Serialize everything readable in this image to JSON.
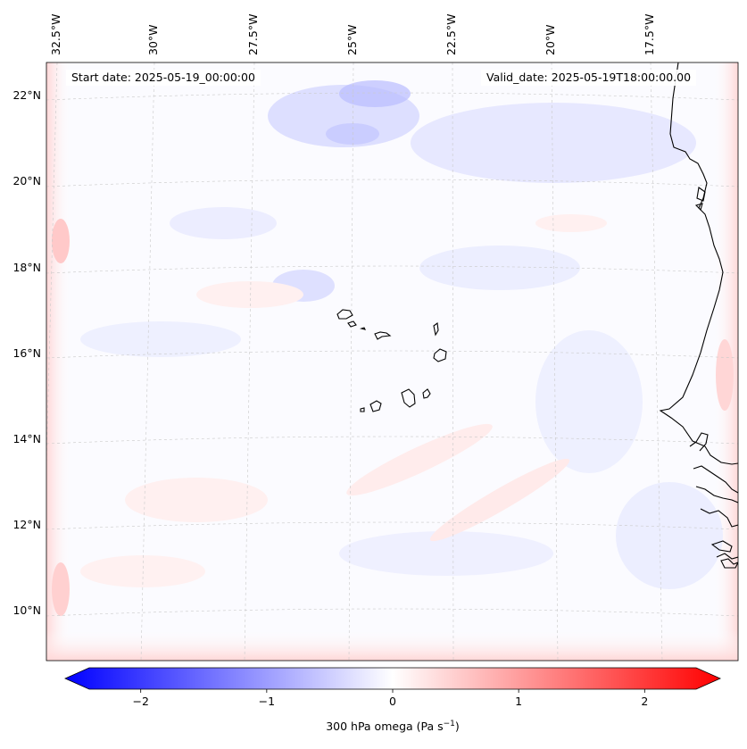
{
  "header": {
    "start_date": "Start date: 2025-05-19_00:00:00",
    "valid_date": "Valid_date: 2025-05-19T18:00:00.00"
  },
  "map": {
    "projection": "lambert-conformal",
    "lon_labels": [
      "32.5°W",
      "30°W",
      "27.5°W",
      "25°W",
      "22.5°W",
      "20°W",
      "17.5°W"
    ],
    "lat_labels": [
      "22°N",
      "20°N",
      "18°N",
      "16°N",
      "14°N",
      "12°N",
      "10°N"
    ],
    "features": [
      "cape-verde-islands",
      "west-africa-coastline"
    ]
  },
  "colorbar": {
    "label_main": "300 hPa omega (Pa s",
    "label_exp": "−1",
    "label_end": ")",
    "ticks": [
      "−2",
      "−1",
      "0",
      "1",
      "2"
    ],
    "tick_values": [
      -2,
      -1,
      0,
      1,
      2
    ],
    "range": [
      -2.6,
      2.6
    ],
    "cmap": "bwr",
    "colors": {
      "negative": "#0000ff",
      "zero": "#ffffff",
      "positive": "#ff0000"
    }
  }
}
